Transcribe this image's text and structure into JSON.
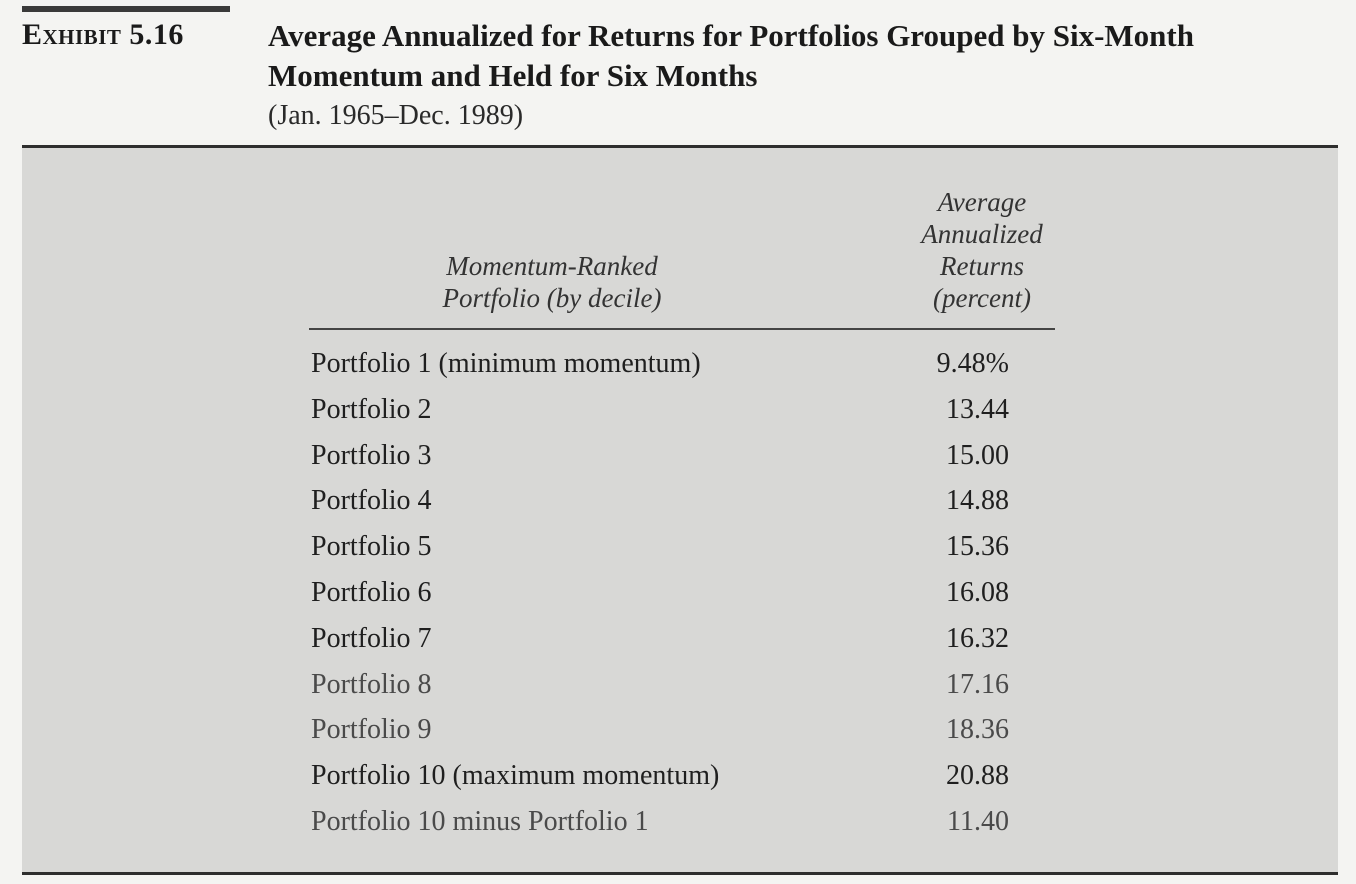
{
  "exhibit": {
    "label": "Exhibit 5.16",
    "title": "Average Annualized for Returns for Portfolios Grouped by Six-Month Momentum and Held for Six Months",
    "subtitle": "(Jan. 1965–Dec. 1989)"
  },
  "table": {
    "headers": {
      "portfolio_line1": "Momentum-Ranked",
      "portfolio_line2": "Portfolio (by decile)",
      "returns_line1": "Average",
      "returns_line2": "Annualized",
      "returns_line3": "Returns",
      "returns_line4": "(percent)"
    },
    "rows": [
      {
        "label": "Portfolio 1 (minimum momentum)",
        "value": "9.48%"
      },
      {
        "label": "Portfolio 2",
        "value": "13.44"
      },
      {
        "label": "Portfolio 3",
        "value": "15.00"
      },
      {
        "label": "Portfolio 4",
        "value": "14.88"
      },
      {
        "label": "Portfolio 5",
        "value": "15.36"
      },
      {
        "label": "Portfolio 6",
        "value": "16.08"
      },
      {
        "label": "Portfolio 7",
        "value": "16.32"
      },
      {
        "label": "Portfolio 8",
        "value": "17.16"
      },
      {
        "label": "Portfolio 9",
        "value": "18.36"
      },
      {
        "label": "Portfolio 10 (maximum momentum)",
        "value": "20.88"
      },
      {
        "label": "Portfolio 10 minus Portfolio 1",
        "value": "11.40"
      }
    ]
  }
}
